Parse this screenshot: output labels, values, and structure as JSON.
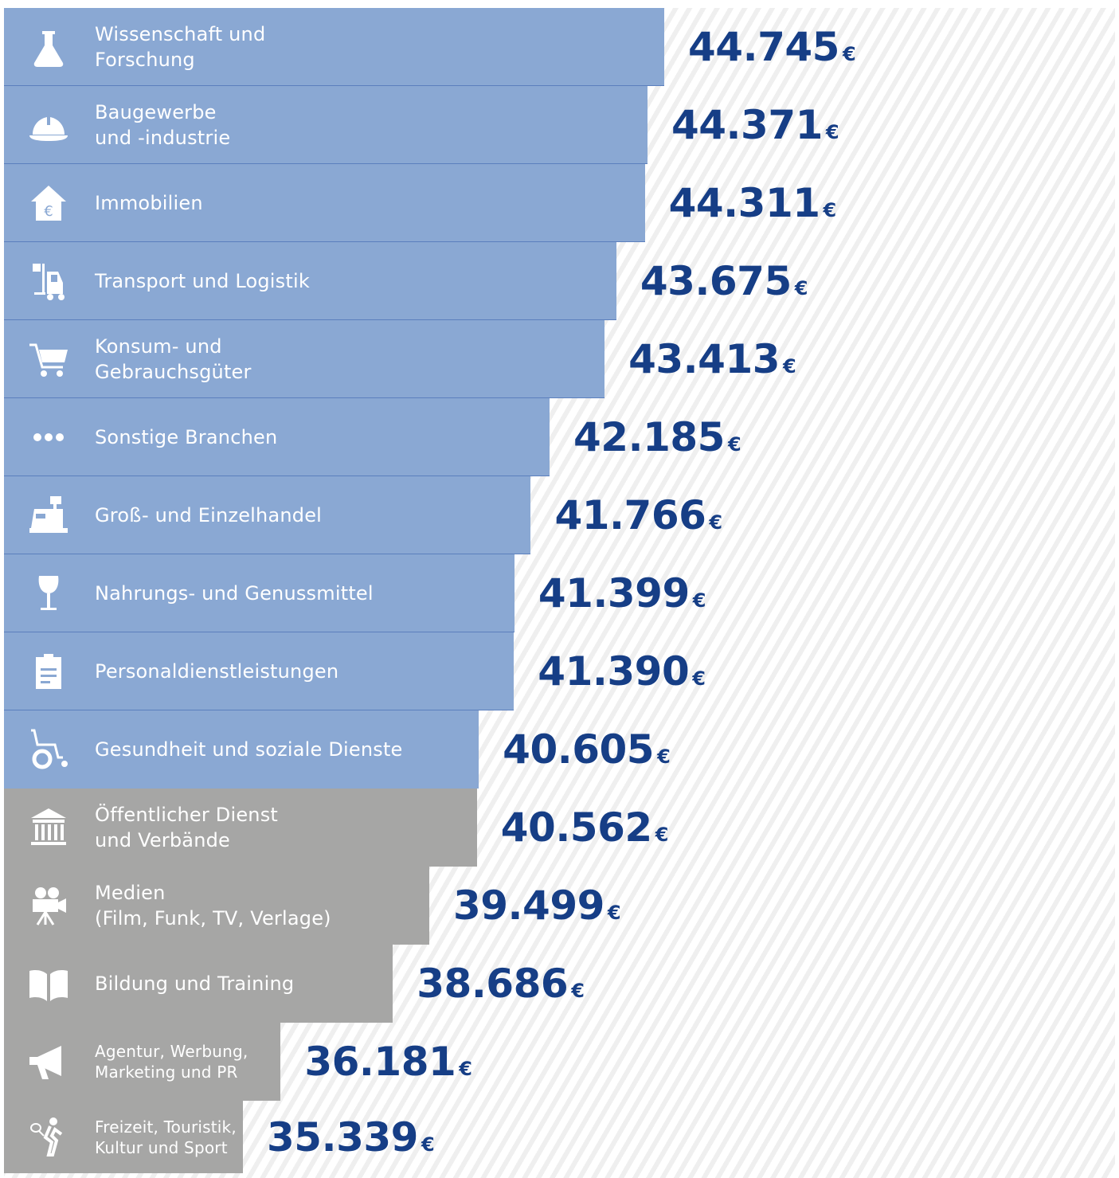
{
  "chart_data": {
    "type": "bar",
    "orientation": "horizontal",
    "currency": "€",
    "categories": [
      "Wissenschaft und\nForschung",
      "Baugewerbe\nund -industrie",
      "Immobilien",
      "Transport und Logistik",
      "Konsum- und\nGebrauchsgüter",
      "Sonstige Branchen",
      "Groß- und Einzelhandel",
      "Nahrungs- und Genussmittel",
      "Personaldienstleistungen",
      "Gesundheit und soziale Dienste",
      "Öffentlicher Dienst\nund Verbände",
      "Medien\n(Film, Funk, TV, Verlage)",
      "Bildung und Training",
      "Agentur, Werbung,\nMarketing und PR",
      "Freizeit, Touristik,\nKultur und Sport"
    ],
    "values": [
      44745,
      44371,
      44311,
      43675,
      43413,
      42185,
      41766,
      41399,
      41390,
      40605,
      40562,
      39499,
      38686,
      36181,
      35339
    ],
    "value_labels": [
      "44.745",
      "44.371",
      "44.311",
      "43.675",
      "43.413",
      "42.185",
      "41.766",
      "41.399",
      "41.390",
      "40.605",
      "40.562",
      "39.499",
      "38.686",
      "36.181",
      "35.339"
    ],
    "icons": [
      "flask-icon",
      "hardhat-icon",
      "house-euro-icon",
      "forklift-icon",
      "shopping-cart-icon",
      "dots-icon",
      "cash-register-icon",
      "wine-glass-icon",
      "clipboard-icon",
      "wheelchair-icon",
      "government-building-icon",
      "film-camera-icon",
      "book-icon",
      "megaphone-icon",
      "tennis-player-icon"
    ],
    "bar_colors": [
      "#8aa8d3",
      "#8aa8d3",
      "#8aa8d3",
      "#8aa8d3",
      "#8aa8d3",
      "#8aa8d3",
      "#8aa8d3",
      "#8aa8d3",
      "#8aa8d3",
      "#8aa8d3",
      "#a6a6a5",
      "#a6a6a5",
      "#a6a6a5",
      "#a6a6a5",
      "#a6a6a5"
    ],
    "value_color": "#163e86",
    "title": "",
    "xlabel": "",
    "ylabel": ""
  }
}
